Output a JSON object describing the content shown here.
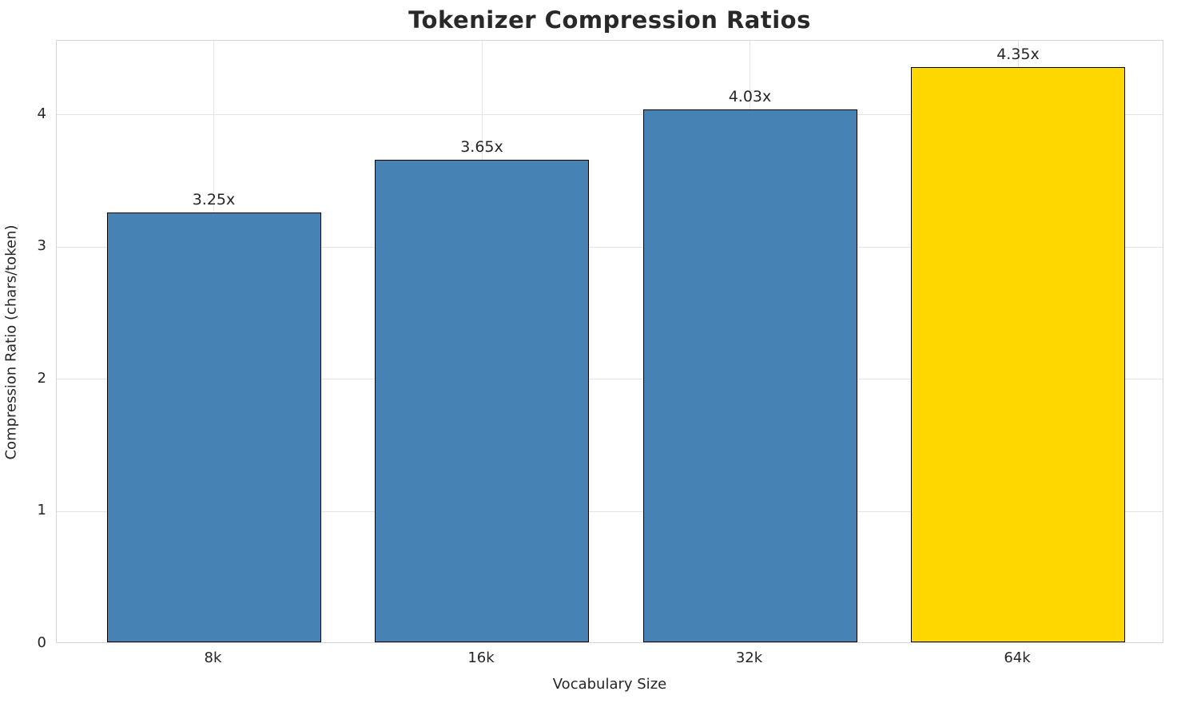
{
  "chart_data": {
    "type": "bar",
    "title": "Tokenizer Compression Ratios",
    "xlabel": "Vocabulary Size",
    "ylabel": "Compression Ratio (chars/token)",
    "categories": [
      "8k",
      "16k",
      "32k",
      "64k"
    ],
    "values": [
      3.25,
      3.65,
      4.03,
      4.35
    ],
    "bar_labels": [
      "3.25x",
      "3.65x",
      "4.03x",
      "4.35x"
    ],
    "bar_colors": [
      "#4682B4",
      "#4682B4",
      "#4682B4",
      "#FFD700"
    ],
    "bar_edge_color": "#000000",
    "y_ticks": [
      "0",
      "1",
      "2",
      "3",
      "4"
    ],
    "y_tick_values": [
      0,
      1,
      2,
      3,
      4
    ],
    "ylim": [
      0,
      4.56
    ],
    "grid": "on",
    "legend": "none"
  }
}
